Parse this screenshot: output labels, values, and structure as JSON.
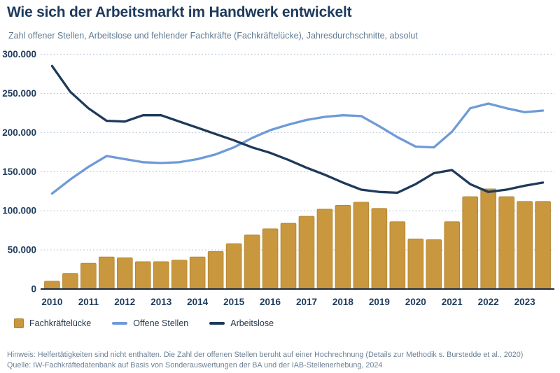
{
  "title": "Wie sich der Arbeitsmarkt im Handwerk entwickelt",
  "subtitle": "Zahl offener Stellen, Arbeitslose und fehlender Fachkräfte (Fachkräftelücke), Jahresdurchschnitte, absolut",
  "legend": [
    {
      "label": "Fachkräftelücke",
      "type": "square",
      "color": "#c8973e",
      "border": "#b0832f"
    },
    {
      "label": "Offene Stellen",
      "type": "line",
      "color": "#6e9bd7"
    },
    {
      "label": "Arbeitslose",
      "type": "line",
      "color": "#1e3a5a"
    }
  ],
  "footer": {
    "note": "Hinweis: Helfertätigkeiten sind nicht enthalten. Die Zahl der offenen Stellen beruht auf einer Hochrechnung (Details zur Methodik s. Burstedde et al., 2020)",
    "source": "Quelle: IW-Fachkräftedatenbank auf Basis von Sonderauswertungen der BA und der IAB-Stellenerhebung, 2024"
  },
  "chart_data": {
    "type": "bar+line",
    "ylim": [
      0,
      300000
    ],
    "grid": "dotted-horizontal",
    "legend_position": "bottom-left",
    "y_ticks": [
      {
        "v": 300000,
        "label": "300.000"
      },
      {
        "v": 250000,
        "label": "250.000"
      },
      {
        "v": 200000,
        "label": "200.000"
      },
      {
        "v": 150000,
        "label": "150.000"
      },
      {
        "v": 100000,
        "label": "100.000"
      },
      {
        "v": 50000,
        "label": "50.000"
      },
      {
        "v": 0,
        "label": "0"
      }
    ],
    "categories": [
      "2010",
      "2011",
      "2012",
      "2013",
      "2014",
      "2015",
      "2016",
      "2017",
      "2018",
      "2019",
      "2020",
      "2021",
      "2022",
      "2023"
    ],
    "points_per_year": 2,
    "series": [
      {
        "name": "Fachkräftelücke",
        "kind": "bar",
        "color": "#c8973e",
        "stroke": "#b0832f",
        "values": [
          10000,
          20000,
          33000,
          41000,
          40000,
          35000,
          35000,
          37000,
          41000,
          48000,
          58000,
          69000,
          77000,
          84000,
          93000,
          102000,
          107000,
          111000,
          103000,
          86000,
          64000,
          63000,
          86000,
          118000,
          128000,
          118000,
          112000,
          112000
        ]
      },
      {
        "name": "Offene Stellen",
        "kind": "line",
        "color": "#6e9bd7",
        "values": [
          122000,
          140000,
          156000,
          170000,
          166000,
          162000,
          161000,
          162000,
          166000,
          172000,
          181000,
          193000,
          203000,
          210000,
          216000,
          220000,
          222000,
          221000,
          208000,
          194000,
          182000,
          181000,
          201000,
          231000,
          237000,
          231000,
          226000,
          228000
        ]
      },
      {
        "name": "Arbeitslose",
        "kind": "line",
        "color": "#1e3a5a",
        "values": [
          285000,
          252000,
          231000,
          215000,
          214000,
          222000,
          222000,
          214000,
          206000,
          198000,
          190000,
          181000,
          174000,
          165000,
          155000,
          146000,
          136000,
          127000,
          124000,
          123000,
          134000,
          148000,
          152000,
          134000,
          124000,
          127000,
          132000,
          136000
        ]
      }
    ],
    "colors": {
      "axis": "#1b2c42",
      "gridline": "#abc0d4",
      "tick_label": "#1d3a5c"
    }
  }
}
